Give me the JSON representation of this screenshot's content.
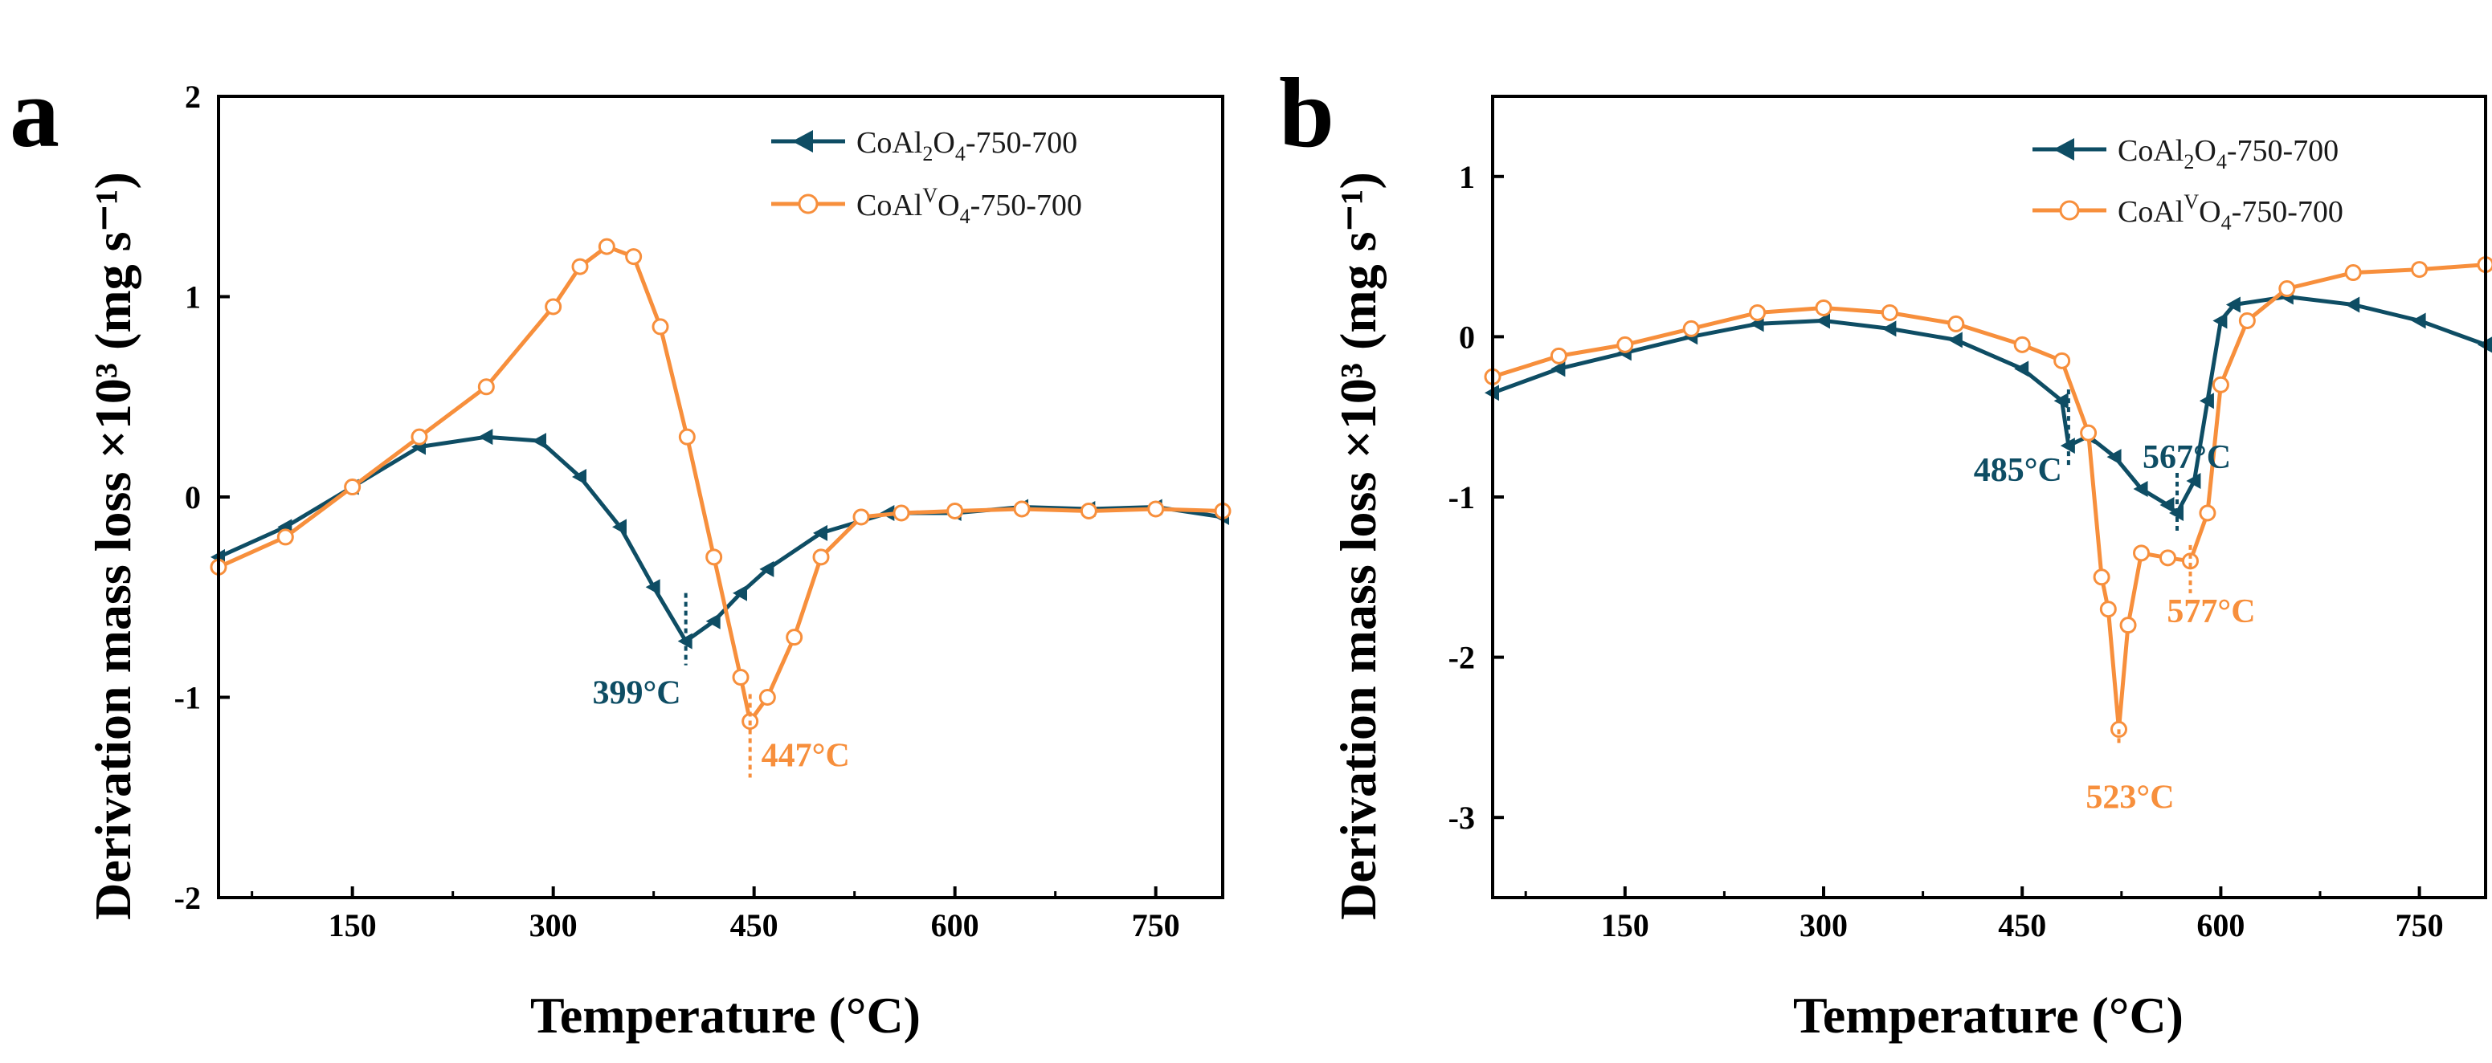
{
  "colors": {
    "s1": "#0e4d64",
    "s2": "#f78f3c"
  },
  "chart_data": [
    {
      "type": "line",
      "panel_label": "a",
      "xlabel": "Temperature (°C)",
      "ylabel": "Derivation mass loss ×10³ (mg s⁻¹)",
      "xlim": [
        50,
        800
      ],
      "ylim": [
        -2,
        2
      ],
      "x_ticks": [
        "150",
        "300",
        "450",
        "600",
        "750"
      ],
      "y_ticks": [
        "-2",
        "-1",
        "0",
        "1",
        "2"
      ],
      "legend_position": "top-right",
      "series": [
        {
          "name": "CoAl2O4-750-700",
          "legend_main": "CoAl",
          "legend_sub1": "2",
          "legend_mid": "O",
          "legend_sub2": "4",
          "legend_tail": "-750-700",
          "marker": "left-triangle",
          "x": [
            50,
            100,
            150,
            200,
            250,
            290,
            320,
            350,
            375,
            399,
            420,
            440,
            460,
            500,
            550,
            600,
            650,
            700,
            750,
            800
          ],
          "y": [
            -0.3,
            -0.15,
            0.05,
            0.25,
            0.3,
            0.28,
            0.1,
            -0.15,
            -0.45,
            -0.72,
            -0.62,
            -0.48,
            -0.36,
            -0.18,
            -0.08,
            -0.08,
            -0.05,
            -0.06,
            -0.05,
            -0.1
          ]
        },
        {
          "name": "CoAlVO4-750-700",
          "legend_main": "CoAl",
          "legend_sup": "V",
          "legend_mid": "O",
          "legend_sub2": "4",
          "legend_tail": "-750-700",
          "marker": "open-circle",
          "x": [
            50,
            100,
            150,
            200,
            250,
            300,
            320,
            340,
            360,
            380,
            400,
            420,
            440,
            447,
            460,
            480,
            500,
            530,
            560,
            600,
            650,
            700,
            750,
            800
          ],
          "y": [
            -0.35,
            -0.2,
            0.05,
            0.3,
            0.55,
            0.95,
            1.15,
            1.25,
            1.2,
            0.85,
            0.3,
            -0.3,
            -0.9,
            -1.12,
            -1.0,
            -0.7,
            -0.3,
            -0.1,
            -0.08,
            -0.07,
            -0.06,
            -0.07,
            -0.06,
            -0.07
          ]
        }
      ],
      "annotations": [
        {
          "text": "399°C",
          "x": 399,
          "y": -0.72,
          "series": 0
        },
        {
          "text": "447°C",
          "x": 447,
          "y": -1.12,
          "series": 1
        }
      ]
    },
    {
      "type": "line",
      "panel_label": "b",
      "xlabel": "Temperature (°C)",
      "ylabel": "Derivation mass loss ×10³ (mg s⁻¹)",
      "xlim": [
        50,
        800
      ],
      "ylim": [
        -3.5,
        1.5
      ],
      "x_ticks": [
        "150",
        "300",
        "450",
        "600",
        "750"
      ],
      "y_ticks": [
        "-3",
        "-2",
        "-1",
        "0",
        "1"
      ],
      "legend_position": "top-right",
      "series": [
        {
          "name": "CoAl2O4-750-700",
          "legend_main": "CoAl",
          "legend_sub1": "2",
          "legend_mid": "O",
          "legend_sub2": "4",
          "legend_tail": "-750-700",
          "marker": "left-triangle",
          "x": [
            50,
            100,
            150,
            200,
            250,
            300,
            350,
            400,
            450,
            480,
            485,
            500,
            520,
            540,
            560,
            567,
            580,
            590,
            600,
            610,
            650,
            700,
            750,
            800
          ],
          "y": [
            -0.35,
            -0.2,
            -0.1,
            0.0,
            0.08,
            0.1,
            0.05,
            -0.02,
            -0.2,
            -0.4,
            -0.68,
            -0.62,
            -0.75,
            -0.95,
            -1.05,
            -1.1,
            -0.9,
            -0.4,
            0.1,
            0.2,
            0.25,
            0.2,
            0.1,
            -0.05
          ]
        },
        {
          "name": "CoAlVO4-750-700",
          "legend_main": "CoAl",
          "legend_sup": "V",
          "legend_mid": "O",
          "legend_sub2": "4",
          "legend_tail": "-750-700",
          "marker": "open-circle",
          "x": [
            50,
            100,
            150,
            200,
            250,
            300,
            350,
            400,
            450,
            480,
            500,
            510,
            515,
            523,
            530,
            540,
            560,
            577,
            590,
            600,
            620,
            650,
            700,
            750,
            800
          ],
          "y": [
            -0.25,
            -0.12,
            -0.05,
            0.05,
            0.15,
            0.18,
            0.15,
            0.08,
            -0.05,
            -0.15,
            -0.6,
            -1.5,
            -1.7,
            -2.45,
            -1.8,
            -1.35,
            -1.38,
            -1.4,
            -1.1,
            -0.3,
            0.1,
            0.3,
            0.4,
            0.42,
            0.45
          ]
        }
      ],
      "annotations": [
        {
          "text": "485°C",
          "x": 485,
          "y": -0.68,
          "series": 0
        },
        {
          "text": "567°C",
          "x": 567,
          "y": -1.1,
          "series": 0
        },
        {
          "text": "577°C",
          "x": 577,
          "y": -1.4,
          "series": 1
        },
        {
          "text": "523°C",
          "x": 523,
          "y": -2.45,
          "series": 1
        }
      ]
    }
  ]
}
